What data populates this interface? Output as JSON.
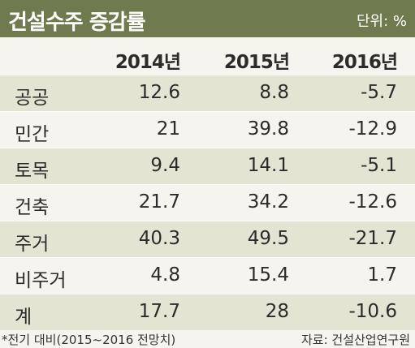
{
  "title": "건설수주 증감률",
  "unit_label": "단위: %",
  "footnote": "*전기 대비(2015~2016 전망치)",
  "source": "자료: 건설산업연구원",
  "colors": {
    "title_bar": "#6f7a4e",
    "band": "#e3e5d2",
    "background": "#f6f4ee"
  },
  "chart_data": {
    "type": "table",
    "title": "건설수주 증감률",
    "unit": "단위: %",
    "columns": [
      "2014년",
      "2015년",
      "2016년"
    ],
    "rows": [
      {
        "label": "공공",
        "values": [
          "12.6",
          "8.8",
          "-5.7"
        ]
      },
      {
        "label": "민간",
        "values": [
          "21",
          "39.8",
          "-12.9"
        ]
      },
      {
        "label": "토목",
        "values": [
          "9.4",
          "14.1",
          "-5.1"
        ]
      },
      {
        "label": "건축",
        "values": [
          "21.7",
          "34.2",
          "-12.6"
        ]
      },
      {
        "label": "주거",
        "values": [
          "40.3",
          "49.5",
          "-21.7"
        ]
      },
      {
        "label": "비주거",
        "values": [
          "4.8",
          "15.4",
          "1.7"
        ]
      },
      {
        "label": "계",
        "values": [
          "17.7",
          "28",
          "-10.6"
        ]
      }
    ],
    "footnote": "*전기 대비(2015~2016 전망치)",
    "source": "자료: 건설산업연구원"
  }
}
